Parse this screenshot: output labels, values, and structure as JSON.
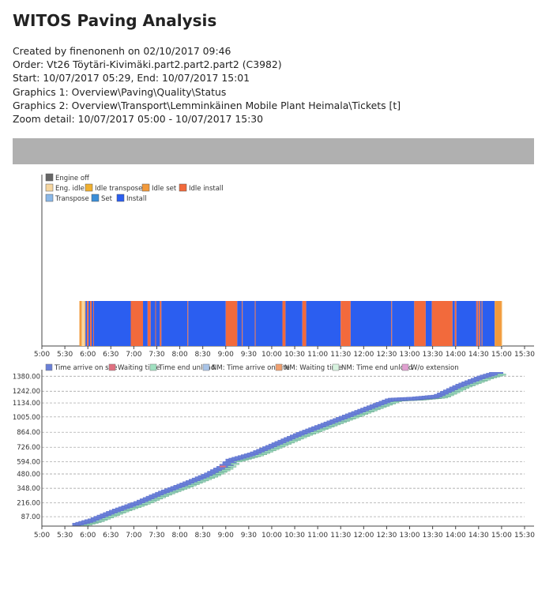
{
  "report": {
    "title": "WITOS Paving Analysis",
    "created": "Created by finenonenh on 02/10/2017 09:46",
    "order": "Order: Vt26 Töytäri-Kivimäki.part2.part2.part2 (C3982)",
    "period": "Start: 10/07/2017 05:29, End: 10/07/2017 15:01",
    "graphics1": "Graphics 1: Overview\\Paving\\Quality\\Status",
    "graphics2": "Graphics 2: Overview\\Transport\\Lemminkäinen Mobile Plant Heimala\\Tickets [t]",
    "zoom": "Zoom detail: 10/07/2017 05:00 - 10/07/2017 15:30"
  },
  "colors": {
    "engine_off": "#666666",
    "eng_idle": "#f6d6a0",
    "idle_transpose": "#f0b030",
    "idle_set": "#f29a3c",
    "idle_install": "#f26a3c",
    "transpose": "#8ab8e8",
    "set": "#3a8ed8",
    "install": "#2b5ef0",
    "time_arrive": "#6a80d8",
    "waiting": "#e07080",
    "time_end_unload": "#a0e0c0",
    "nm_arrive": "#a8c4e8",
    "nm_waiting": "#f0a070",
    "nm_end_unload": "#d8f4e0",
    "wo_extension": "#e0a0d0"
  },
  "chart_data": [
    {
      "type": "timeline",
      "name": "status",
      "x_range": [
        "5:00",
        "15:30"
      ],
      "x_ticks": [
        "5:00",
        "5:30",
        "6:00",
        "6:30",
        "7:00",
        "7:30",
        "8:00",
        "8:30",
        "9:00",
        "9:30",
        "10:00",
        "10:30",
        "11:00",
        "11:30",
        "12:00",
        "12:30",
        "13:00",
        "13:30",
        "14:00",
        "14:30",
        "15:00",
        "15:30"
      ],
      "legend": [
        {
          "label": "Engine off",
          "key": "engine_off"
        },
        {
          "label": "Eng. idle",
          "key": "eng_idle"
        },
        {
          "label": "Idle transpose",
          "key": "idle_transpose"
        },
        {
          "label": "Idle set",
          "key": "idle_set"
        },
        {
          "label": "Idle install",
          "key": "idle_install"
        },
        {
          "label": "Transpose",
          "key": "transpose"
        },
        {
          "label": "Set",
          "key": "set"
        },
        {
          "label": "Install",
          "key": "install"
        }
      ],
      "segments": [
        {
          "start": "5:49",
          "end": "5:52",
          "status": "idle_set"
        },
        {
          "start": "5:52",
          "end": "5:56",
          "status": "eng_idle"
        },
        {
          "start": "5:56",
          "end": "5:57",
          "status": "idle_set"
        },
        {
          "start": "5:57",
          "end": "5:59",
          "status": "install"
        },
        {
          "start": "5:59",
          "end": "6:01",
          "status": "idle_install"
        },
        {
          "start": "6:01",
          "end": "6:03",
          "status": "install"
        },
        {
          "start": "6:03",
          "end": "6:05",
          "status": "idle_install"
        },
        {
          "start": "6:05",
          "end": "6:07",
          "status": "install"
        },
        {
          "start": "6:07",
          "end": "6:08",
          "status": "idle_install"
        },
        {
          "start": "6:08",
          "end": "6:56",
          "status": "install"
        },
        {
          "start": "6:56",
          "end": "7:12",
          "status": "idle_install"
        },
        {
          "start": "7:12",
          "end": "7:18",
          "status": "install"
        },
        {
          "start": "7:18",
          "end": "7:22",
          "status": "idle_install"
        },
        {
          "start": "7:22",
          "end": "7:28",
          "status": "install"
        },
        {
          "start": "7:28",
          "end": "7:29",
          "status": "idle_install"
        },
        {
          "start": "7:29",
          "end": "7:34",
          "status": "install"
        },
        {
          "start": "7:34",
          "end": "7:36",
          "status": "idle_install"
        },
        {
          "start": "7:36",
          "end": "8:10",
          "status": "install"
        },
        {
          "start": "8:10",
          "end": "8:11",
          "status": "idle_install"
        },
        {
          "start": "8:11",
          "end": "9:00",
          "status": "install"
        },
        {
          "start": "9:00",
          "end": "9:15",
          "status": "idle_install"
        },
        {
          "start": "9:15",
          "end": "9:21",
          "status": "install"
        },
        {
          "start": "9:21",
          "end": "9:22",
          "status": "idle_install"
        },
        {
          "start": "9:22",
          "end": "9:38",
          "status": "install"
        },
        {
          "start": "9:38",
          "end": "9:39",
          "status": "idle_install"
        },
        {
          "start": "9:39",
          "end": "10:14",
          "status": "install"
        },
        {
          "start": "10:14",
          "end": "10:18",
          "status": "idle_install"
        },
        {
          "start": "10:18",
          "end": "10:40",
          "status": "install"
        },
        {
          "start": "10:40",
          "end": "10:45",
          "status": "idle_install"
        },
        {
          "start": "10:45",
          "end": "11:30",
          "status": "install"
        },
        {
          "start": "11:30",
          "end": "11:43",
          "status": "idle_install"
        },
        {
          "start": "11:43",
          "end": "12:36",
          "status": "install"
        },
        {
          "start": "12:36",
          "end": "12:37",
          "status": "idle_install"
        },
        {
          "start": "12:37",
          "end": "13:06",
          "status": "install"
        },
        {
          "start": "13:06",
          "end": "13:21",
          "status": "idle_install"
        },
        {
          "start": "13:21",
          "end": "13:29",
          "status": "install"
        },
        {
          "start": "13:29",
          "end": "13:56",
          "status": "idle_install"
        },
        {
          "start": "13:56",
          "end": "13:59",
          "status": "install"
        },
        {
          "start": "13:59",
          "end": "14:01",
          "status": "idle_install"
        },
        {
          "start": "14:01",
          "end": "14:27",
          "status": "install"
        },
        {
          "start": "14:27",
          "end": "14:29",
          "status": "idle_install"
        },
        {
          "start": "14:29",
          "end": "14:30",
          "status": "install"
        },
        {
          "start": "14:30",
          "end": "14:32",
          "status": "idle_install"
        },
        {
          "start": "14:32",
          "end": "14:34",
          "status": "install"
        },
        {
          "start": "14:34",
          "end": "14:35",
          "status": "idle_install"
        },
        {
          "start": "14:35",
          "end": "14:51",
          "status": "install"
        },
        {
          "start": "14:51",
          "end": "15:00",
          "status": "idle_set"
        },
        {
          "start": "15:00",
          "end": "15:01",
          "status": "eng_idle"
        }
      ]
    },
    {
      "type": "gantt",
      "name": "tickets",
      "x_range": [
        "5:00",
        "15:30"
      ],
      "x_ticks": [
        "5:00",
        "5:30",
        "6:00",
        "6:30",
        "7:00",
        "7:30",
        "8:00",
        "8:30",
        "9:00",
        "9:30",
        "10:00",
        "10:30",
        "11:00",
        "11:30",
        "12:00",
        "12:30",
        "13:00",
        "13:30",
        "14:00",
        "14:30",
        "15:00",
        "15:30"
      ],
      "y_range": [
        0,
        1440
      ],
      "y_ticks": [
        "1380.00",
        "1242.00",
        "1134.00",
        "1005.00",
        "864.00",
        "726.00",
        "594.00",
        "480.00",
        "348.00",
        "216.00",
        "87.00"
      ],
      "y_tick_values": [
        1380,
        1242,
        1134,
        1005,
        864,
        726,
        594,
        480,
        348,
        216,
        87
      ],
      "legend": [
        {
          "label": "Time arrive on site",
          "key": "time_arrive"
        },
        {
          "label": "Waiting time",
          "key": "waiting"
        },
        {
          "label": "Time end unload",
          "key": "time_end_unload"
        },
        {
          "label": "NM: Time arrive on site",
          "key": "nm_arrive"
        },
        {
          "label": "NM: Waiting time",
          "key": "nm_waiting"
        },
        {
          "label": "NM: Time end unload",
          "key": "nm_end_unload"
        },
        {
          "label": "W/o extension",
          "key": "wo_extension"
        }
      ],
      "progress_points": [
        {
          "t": "5:40",
          "cum": 0
        },
        {
          "t": "6:00",
          "cum": 40
        },
        {
          "t": "6:30",
          "cum": 125
        },
        {
          "t": "7:00",
          "cum": 200
        },
        {
          "t": "7:30",
          "cum": 290
        },
        {
          "t": "8:00",
          "cum": 370
        },
        {
          "t": "8:30",
          "cum": 455
        },
        {
          "t": "8:50",
          "cum": 530
        },
        {
          "t": "9:00",
          "cum": 590
        },
        {
          "t": "9:30",
          "cum": 650
        },
        {
          "t": "10:00",
          "cum": 740
        },
        {
          "t": "10:30",
          "cum": 830
        },
        {
          "t": "11:00",
          "cum": 910
        },
        {
          "t": "11:30",
          "cum": 990
        },
        {
          "t": "12:00",
          "cum": 1070
        },
        {
          "t": "12:30",
          "cum": 1150
        },
        {
          "t": "13:00",
          "cum": 1160
        },
        {
          "t": "13:30",
          "cum": 1180
        },
        {
          "t": "14:00",
          "cum": 1280
        },
        {
          "t": "14:30",
          "cum": 1360
        },
        {
          "t": "14:45",
          "cum": 1390
        }
      ],
      "ticket_size": 28
    }
  ]
}
